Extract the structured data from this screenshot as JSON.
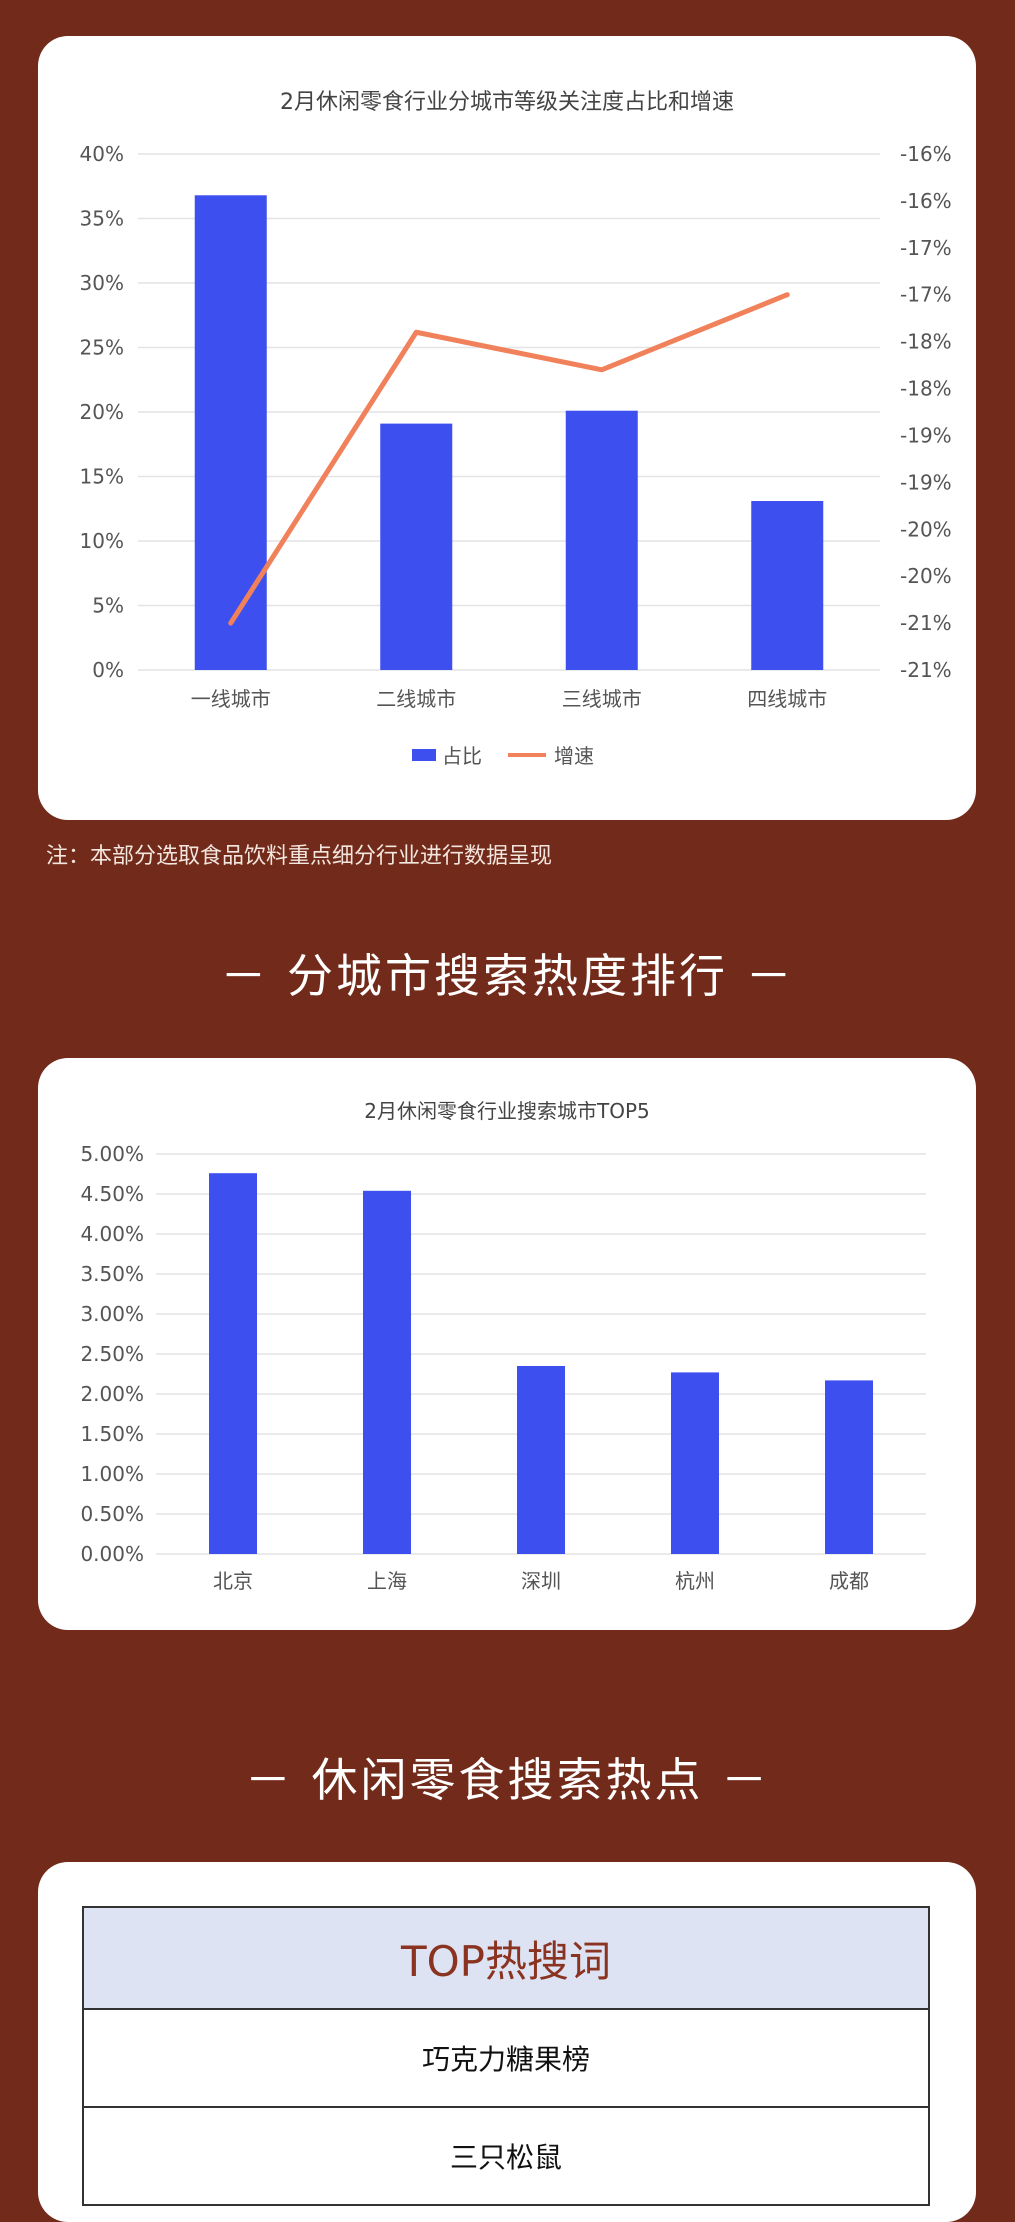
{
  "chart_data": [
    {
      "type": "bar",
      "title": "2月休闲零食行业分城市等级关注度占比和增速",
      "categories": [
        "一线城市",
        "二线城市",
        "三线城市",
        "四线城市"
      ],
      "series": [
        {
          "name": "占比",
          "type": "bar",
          "axis": "left",
          "color": "#3e4ff0",
          "values": [
            36.8,
            19.1,
            20.1,
            13.1
          ]
        },
        {
          "name": "增速",
          "type": "line",
          "axis": "right",
          "color": "#f0815a",
          "values": [
            -21.0,
            -17.9,
            -18.3,
            -17.5
          ]
        }
      ],
      "y_left": {
        "ticks": [
          "40%",
          "35%",
          "30%",
          "25%",
          "20%",
          "15%",
          "10%",
          "5%",
          "0%"
        ],
        "ylim": [
          0,
          40
        ]
      },
      "y_right": {
        "ticks": [
          "-16%",
          "-16%",
          "-17%",
          "-17%",
          "-18%",
          "-18%",
          "-19%",
          "-19%",
          "-20%",
          "-20%",
          "-21%",
          "-21%"
        ],
        "ylim": [
          -21.5,
          -16
        ]
      },
      "legend": {
        "placement": "bottom"
      },
      "grid": true
    },
    {
      "type": "bar",
      "title": "2月休闲零食行业搜索城市TOP5",
      "categories": [
        "北京",
        "上海",
        "深圳",
        "杭州",
        "成都"
      ],
      "values": [
        4.76,
        4.54,
        2.35,
        2.27,
        2.17
      ],
      "color": "#3e4ff0",
      "y_ticks": [
        "5.00%",
        "4.50%",
        "4.00%",
        "3.50%",
        "3.00%",
        "2.50%",
        "2.00%",
        "1.50%",
        "1.00%",
        "0.50%",
        "0.00%"
      ],
      "ylim": [
        0,
        5
      ],
      "grid": true
    }
  ],
  "note": "注：本部分选取食品饮料重点细分行业进行数据呈现",
  "section_titles": [
    "－ 分城市搜索热度排行 －",
    "－ 休闲零食搜索热点 －"
  ],
  "hot_table": {
    "header": "TOP热搜词",
    "rows": [
      "巧克力糖果榜",
      "三只松鼠"
    ]
  },
  "colors": {
    "background": "#722b1a",
    "bar": "#3e4ff0",
    "line": "#f0815a",
    "table_header_bg": "#dde3f2",
    "table_header_text": "#8a3321"
  }
}
